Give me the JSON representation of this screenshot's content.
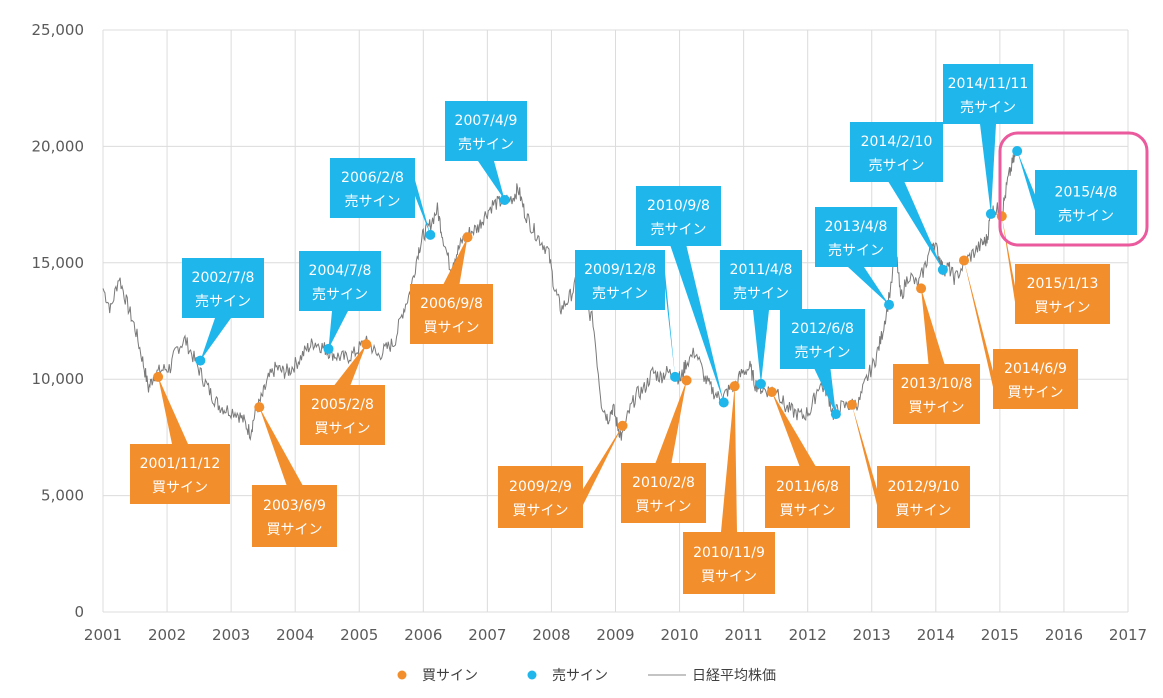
{
  "chart_data": {
    "type": "line",
    "title": "",
    "xlabel": "",
    "ylabel": "",
    "xlim": [
      2001,
      2017
    ],
    "ylim": [
      0,
      25000
    ],
    "x_ticks": [
      "2001",
      "2002",
      "2003",
      "2004",
      "2005",
      "2006",
      "2007",
      "2008",
      "2009",
      "2010",
      "2011",
      "2012",
      "2013",
      "2014",
      "2015",
      "2016",
      "2017"
    ],
    "y_ticks": [
      "0",
      "5,000",
      "10,000",
      "15,000",
      "20,000",
      "25,000"
    ],
    "grid": true,
    "legend": {
      "placement": "bottom",
      "items": [
        {
          "label": "買サイン",
          "color": "#f28e2c",
          "kind": "dot"
        },
        {
          "label": "売サイン",
          "color": "#1fb6ec",
          "kind": "dot"
        },
        {
          "label": "日経平均株価",
          "color": "#888888",
          "kind": "line"
        }
      ]
    },
    "colors": {
      "buy": "#f28e2c",
      "sell": "#1fb6ec",
      "line": "#7a7a7a",
      "highlight": "#ea5a9d",
      "grid": "#dcdcdc"
    },
    "series": [
      {
        "name": "日経平均株価",
        "points": [
          [
            2001.0,
            13900
          ],
          [
            2001.12,
            13000
          ],
          [
            2001.25,
            14400
          ],
          [
            2001.38,
            13200
          ],
          [
            2001.5,
            12200
          ],
          [
            2001.62,
            10800
          ],
          [
            2001.71,
            9600
          ],
          [
            2001.8,
            10200
          ],
          [
            2001.92,
            10400
          ],
          [
            2002.05,
            10500
          ],
          [
            2002.15,
            11300
          ],
          [
            2002.28,
            11700
          ],
          [
            2002.42,
            10900
          ],
          [
            2002.55,
            10100
          ],
          [
            2002.68,
            9400
          ],
          [
            2002.8,
            8900
          ],
          [
            2002.92,
            8700
          ],
          [
            2003.08,
            8600
          ],
          [
            2003.2,
            8200
          ],
          [
            2003.3,
            7700
          ],
          [
            2003.38,
            8600
          ],
          [
            2003.48,
            9200
          ],
          [
            2003.58,
            10000
          ],
          [
            2003.7,
            10500
          ],
          [
            2003.82,
            10300
          ],
          [
            2003.92,
            10400
          ],
          [
            2004.05,
            10800
          ],
          [
            2004.18,
            11300
          ],
          [
            2004.3,
            11600
          ],
          [
            2004.42,
            11400
          ],
          [
            2004.52,
            11200
          ],
          [
            2004.65,
            11000
          ],
          [
            2004.78,
            10900
          ],
          [
            2004.92,
            11100
          ],
          [
            2005.05,
            11500
          ],
          [
            2005.15,
            11600
          ],
          [
            2005.28,
            11000
          ],
          [
            2005.42,
            11300
          ],
          [
            2005.55,
            11600
          ],
          [
            2005.68,
            12900
          ],
          [
            2005.8,
            13800
          ],
          [
            2005.92,
            15500
          ],
          [
            2006.0,
            16200
          ],
          [
            2006.1,
            16600
          ],
          [
            2006.22,
            17300
          ],
          [
            2006.3,
            16200
          ],
          [
            2006.42,
            14800
          ],
          [
            2006.52,
            15400
          ],
          [
            2006.62,
            16000
          ],
          [
            2006.72,
            16300
          ],
          [
            2006.85,
            16500
          ],
          [
            2006.95,
            17000
          ],
          [
            2007.08,
            17500
          ],
          [
            2007.2,
            17600
          ],
          [
            2007.27,
            17700
          ],
          [
            2007.4,
            17800
          ],
          [
            2007.48,
            18200
          ],
          [
            2007.58,
            17200
          ],
          [
            2007.7,
            16500
          ],
          [
            2007.82,
            16000
          ],
          [
            2007.95,
            15500
          ],
          [
            2008.05,
            13900
          ],
          [
            2008.15,
            13000
          ],
          [
            2008.28,
            13500
          ],
          [
            2008.4,
            14200
          ],
          [
            2008.52,
            13300
          ],
          [
            2008.65,
            12500
          ],
          [
            2008.78,
            9000
          ],
          [
            2008.88,
            8300
          ],
          [
            2008.96,
            8800
          ],
          [
            2009.03,
            8000
          ],
          [
            2009.1,
            7500
          ],
          [
            2009.2,
            8500
          ],
          [
            2009.32,
            9300
          ],
          [
            2009.45,
            9600
          ],
          [
            2009.58,
            10300
          ],
          [
            2009.7,
            10100
          ],
          [
            2009.8,
            10300
          ],
          [
            2009.93,
            10200
          ],
          [
            2010.02,
            10000
          ],
          [
            2010.1,
            10700
          ],
          [
            2010.25,
            11200
          ],
          [
            2010.4,
            10000
          ],
          [
            2010.52,
            9500
          ],
          [
            2010.65,
            9100
          ],
          [
            2010.75,
            9500
          ],
          [
            2010.86,
            9700
          ],
          [
            2010.98,
            10300
          ],
          [
            2011.1,
            10500
          ],
          [
            2011.18,
            9800
          ],
          [
            2011.28,
            9600
          ],
          [
            2011.4,
            9500
          ],
          [
            2011.52,
            9600
          ],
          [
            2011.65,
            8800
          ],
          [
            2011.78,
            8600
          ],
          [
            2011.92,
            8400
          ],
          [
            2012.05,
            8700
          ],
          [
            2012.18,
            9800
          ],
          [
            2012.3,
            9500
          ],
          [
            2012.4,
            8500
          ],
          [
            2012.52,
            8800
          ],
          [
            2012.68,
            8900
          ],
          [
            2012.8,
            9000
          ],
          [
            2012.92,
            10000
          ],
          [
            2013.05,
            10800
          ],
          [
            2013.15,
            11800
          ],
          [
            2013.25,
            13200
          ],
          [
            2013.38,
            15500
          ],
          [
            2013.45,
            13500
          ],
          [
            2013.58,
            14500
          ],
          [
            2013.72,
            14000
          ],
          [
            2013.85,
            15000
          ],
          [
            2013.95,
            16000
          ],
          [
            2014.05,
            15300
          ],
          [
            2014.11,
            14700
          ],
          [
            2014.2,
            14800
          ],
          [
            2014.3,
            14300
          ],
          [
            2014.45,
            15000
          ],
          [
            2014.58,
            15400
          ],
          [
            2014.72,
            15800
          ],
          [
            2014.8,
            16000
          ],
          [
            2014.86,
            17200
          ],
          [
            2014.95,
            17300
          ],
          [
            2015.04,
            17200
          ],
          [
            2015.12,
            18500
          ],
          [
            2015.2,
            19300
          ],
          [
            2015.27,
            19800
          ]
        ]
      }
    ],
    "signals": [
      {
        "type": "sell",
        "date": "2002/7/8",
        "label": "売サイン",
        "x": 2002.52,
        "y": 10800
      },
      {
        "type": "sell",
        "date": "2004/7/8",
        "label": "売サイン",
        "x": 2004.52,
        "y": 11300
      },
      {
        "type": "sell",
        "date": "2006/2/8",
        "label": "売サイン",
        "x": 2006.11,
        "y": 16200
      },
      {
        "type": "sell",
        "date": "2007/4/9",
        "label": "売サイン",
        "x": 2007.27,
        "y": 17700
      },
      {
        "type": "sell",
        "date": "2009/12/8",
        "label": "売サイン",
        "x": 2009.93,
        "y": 10100
      },
      {
        "type": "sell",
        "date": "2010/9/8",
        "label": "売サイン",
        "x": 2010.69,
        "y": 9000
      },
      {
        "type": "sell",
        "date": "2011/4/8",
        "label": "売サイン",
        "x": 2011.27,
        "y": 9800
      },
      {
        "type": "sell",
        "date": "2012/6/8",
        "label": "売サイン",
        "x": 2012.44,
        "y": 8500
      },
      {
        "type": "sell",
        "date": "2013/4/8",
        "label": "売サイン",
        "x": 2013.27,
        "y": 13200
      },
      {
        "type": "sell",
        "date": "2014/2/10",
        "label": "売サイン",
        "x": 2014.11,
        "y": 14700
      },
      {
        "type": "sell",
        "date": "2014/11/11",
        "label": "売サイン",
        "x": 2014.86,
        "y": 17100
      },
      {
        "type": "sell",
        "date": "2015/4/8",
        "label": "売サイン",
        "x": 2015.27,
        "y": 19800
      },
      {
        "type": "buy",
        "date": "2001/11/12",
        "label": "買サイン",
        "x": 2001.86,
        "y": 10100
      },
      {
        "type": "buy",
        "date": "2003/6/9",
        "label": "買サイン",
        "x": 2003.44,
        "y": 8800
      },
      {
        "type": "buy",
        "date": "2005/2/8",
        "label": "買サイン",
        "x": 2005.11,
        "y": 11500
      },
      {
        "type": "buy",
        "date": "2006/9/8",
        "label": "買サイン",
        "x": 2006.69,
        "y": 16100
      },
      {
        "type": "buy",
        "date": "2009/2/9",
        "label": "買サイン",
        "x": 2009.11,
        "y": 8000
      },
      {
        "type": "buy",
        "date": "2010/2/8",
        "label": "買サイン",
        "x": 2010.11,
        "y": 9950
      },
      {
        "type": "buy",
        "date": "2010/11/9",
        "label": "買サイン",
        "x": 2010.86,
        "y": 9700
      },
      {
        "type": "buy",
        "date": "2011/6/8",
        "label": "買サイン",
        "x": 2011.44,
        "y": 9450
      },
      {
        "type": "buy",
        "date": "2012/9/10",
        "label": "買サイン",
        "x": 2012.69,
        "y": 8900
      },
      {
        "type": "buy",
        "date": "2013/10/8",
        "label": "買サイン",
        "x": 2013.77,
        "y": 13900
      },
      {
        "type": "buy",
        "date": "2014/6/9",
        "label": "買サイン",
        "x": 2014.44,
        "y": 15100
      },
      {
        "type": "buy",
        "date": "2015/1/13",
        "label": "買サイン",
        "x": 2015.03,
        "y": 17000
      }
    ]
  }
}
